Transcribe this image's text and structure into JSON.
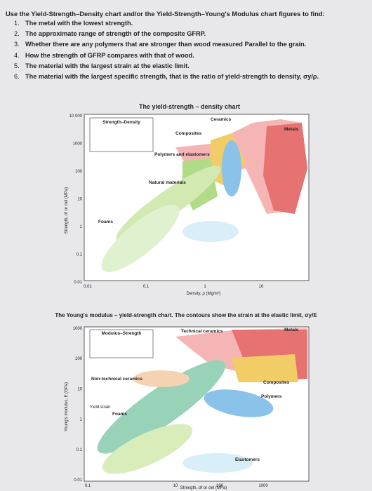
{
  "intro": "Use the Yield-Strength–Density chart and/or the Yield-Strength–Young's Modulus chart figures to find:",
  "questions": [
    {
      "number": "1.",
      "text": "The metal with the lowest strength."
    },
    {
      "number": "2.",
      "text": "The approximate range of strength of the composite GFRP."
    },
    {
      "number": "3.",
      "text": "Whether there are any polymers that are stronger than wood measured Parallel to the grain."
    },
    {
      "number": "4.",
      "text": "How the strength of GFRP compares with that of wood."
    },
    {
      "number": "5.",
      "text": "The material with the largest strain at the elastic limit."
    },
    {
      "number": "6.",
      "text": "The material with the largest specific strength, that is the ratio of yield-strength to density, σy/ρ."
    }
  ],
  "figures": [
    {
      "caption": "The yield-strength – density chart",
      "chart_label": "Strength–Density",
      "y_axis_label": "Strength, σf or σel (MPa)",
      "x_axis_label": "Density, ρ (Mg/m³)",
      "y_ticks": [
        "10 000",
        "1000",
        "100",
        "10",
        "1",
        "0.1",
        "0.01"
      ],
      "x_ticks": [
        "0.01",
        "0.1",
        "1",
        "10"
      ],
      "regions": [
        "Ceramics",
        "Composites",
        "Metals",
        "Polymers and elastomers",
        "Natural materials",
        "Foams"
      ]
    },
    {
      "caption": "The Young's modulus – yield-strength chart. The contours show the strain at the elastic limit, σy/E",
      "chart_label": "Modulus–Strength",
      "y_axis_label": "Young's modulus, E (GPa)",
      "x_axis_label": "Strength, σf or σel (MPa)",
      "y_ticks": [
        "1000",
        "100",
        "10",
        "1",
        "0.1",
        "0.01"
      ],
      "x_ticks": [
        "0.1",
        "10",
        "100",
        "1000"
      ],
      "regions": [
        "Technical ceramics",
        "Metals",
        "Composites",
        "Polymers",
        "Non-technical ceramics",
        "Foams",
        "Elastomers",
        "Yield strain"
      ]
    }
  ]
}
